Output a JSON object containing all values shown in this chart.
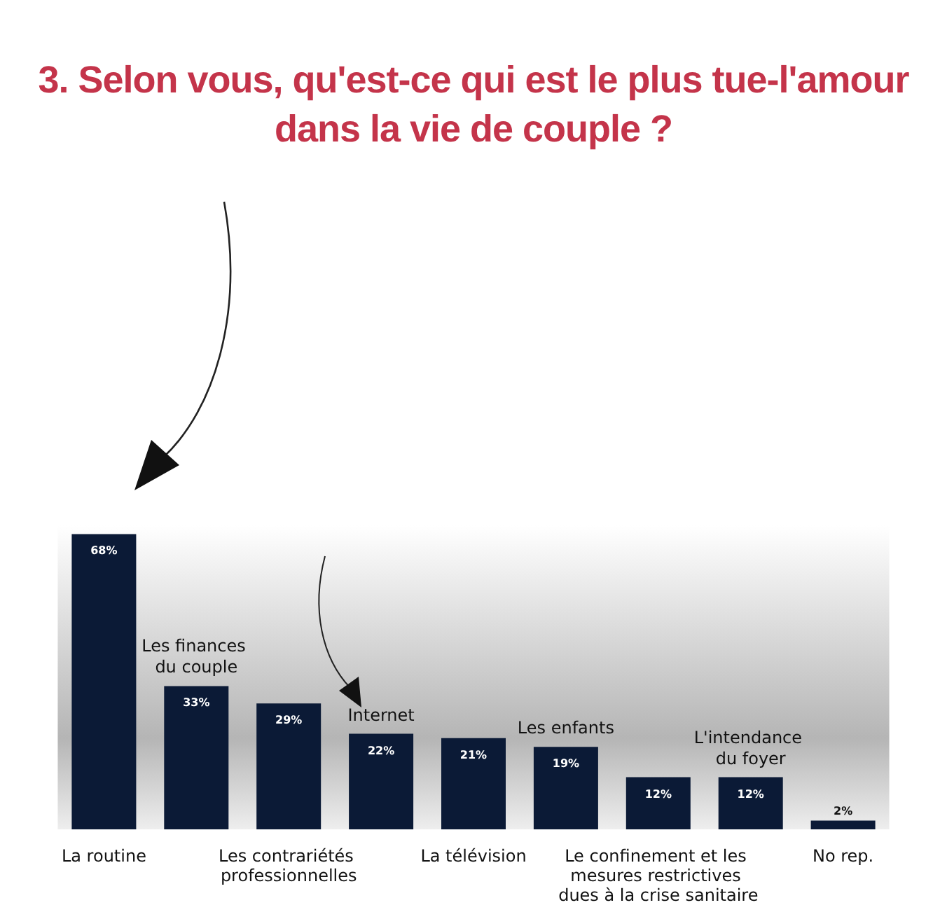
{
  "chart_data": {
    "type": "bar",
    "title": "3. Selon vous, qu'est-ce qui est le plus tue-l'amour dans la vie de couple ?",
    "categories": [
      "La routine",
      "Les finances du couple",
      "Les contrariétés professionnelles",
      "Internet",
      "La télévision",
      "Les enfants",
      "Le confinement et les mesures restrictives dues à la crise sanitaire",
      "L'intendance du foyer",
      "No rep."
    ],
    "values": [
      68,
      33,
      29,
      22,
      21,
      19,
      12,
      12,
      2
    ],
    "value_labels": [
      "68%",
      "33%",
      "29%",
      "22%",
      "21%",
      "19%",
      "12%",
      "12%",
      "2%"
    ],
    "color": "#0b1a36",
    "grid": false
  }
}
